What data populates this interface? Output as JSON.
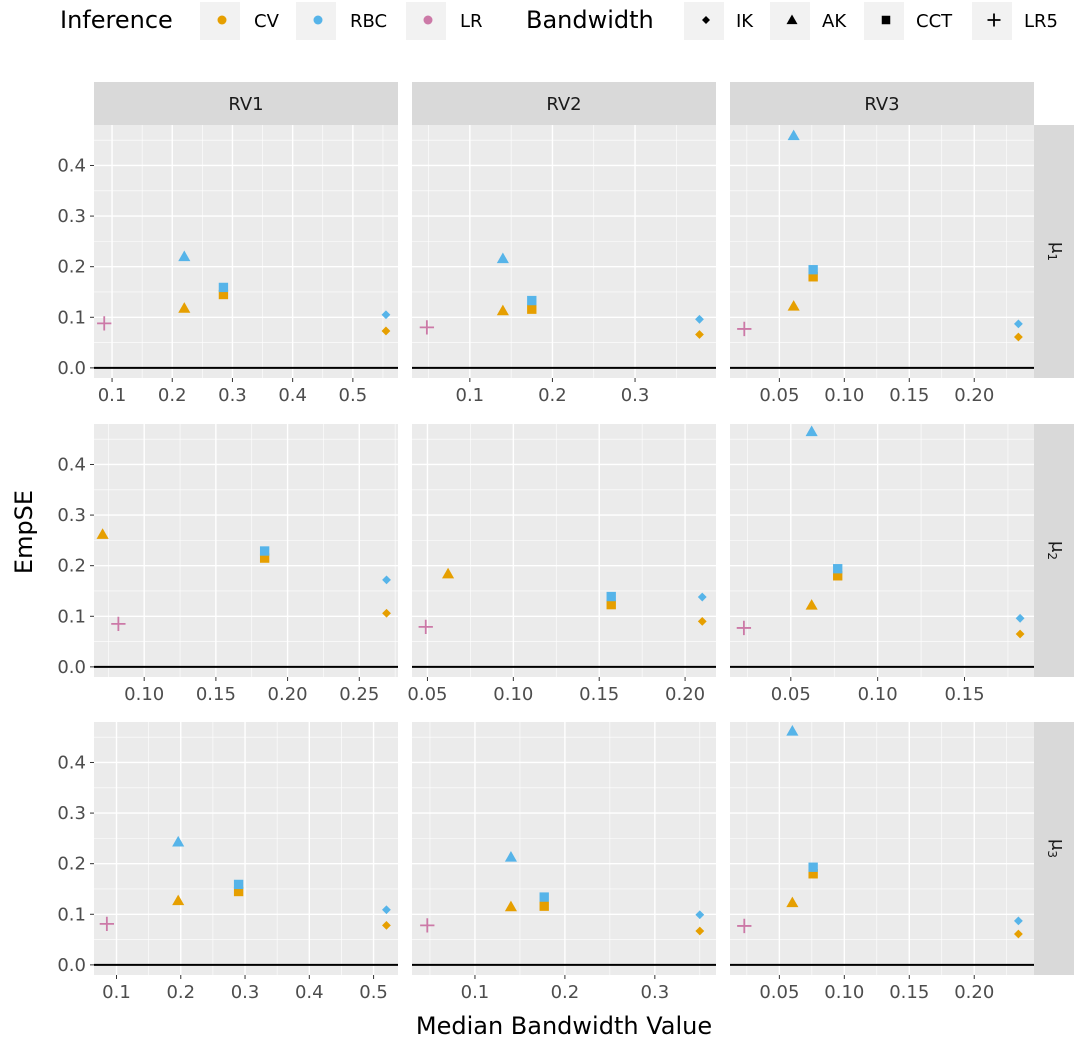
{
  "chart_data": {
    "type": "scatter",
    "xlabel": "Median Bandwidth Value",
    "ylabel": "EmpSE",
    "ylim": [
      -0.02,
      0.48
    ],
    "yticks": [
      0.0,
      0.1,
      0.2,
      0.3,
      0.4
    ],
    "yticklabels": [
      "0.0",
      "0.1",
      "0.2",
      "0.3",
      "0.4"
    ],
    "grid": true,
    "legend_position": "top",
    "legend": {
      "inference_title": "Inference",
      "inference": [
        {
          "key": "CV",
          "label": "CV",
          "color": "#E69F00"
        },
        {
          "key": "RBC",
          "label": "RBC",
          "color": "#56B4E9"
        },
        {
          "key": "LR",
          "label": "LR",
          "color": "#CC79A7"
        }
      ],
      "bandwidth_title": "Bandwidth",
      "bandwidth": [
        {
          "key": "IK",
          "label": "IK",
          "shape": "diamond"
        },
        {
          "key": "AK",
          "label": "AK",
          "shape": "triangle"
        },
        {
          "key": "CCT",
          "label": "CCT",
          "shape": "square"
        },
        {
          "key": "LR5",
          "label": "LR5",
          "shape": "plus"
        }
      ]
    },
    "columns": [
      "RV1",
      "RV2",
      "RV3"
    ],
    "rows": [
      {
        "label": "μ",
        "sub": "1"
      },
      {
        "label": "μ",
        "sub": "2"
      },
      {
        "label": "μ",
        "sub": "3"
      }
    ],
    "panels": [
      {
        "col": 0,
        "row": 0,
        "xlim": [
          0.07,
          0.575
        ],
        "xticks": [
          0.1,
          0.2,
          0.3,
          0.4,
          0.5
        ],
        "xticklabels": [
          "0.1",
          "0.2",
          "0.3",
          "0.4",
          "0.5"
        ],
        "points": [
          {
            "bw": "LR5",
            "inf": "LR",
            "x": 0.087,
            "y": 0.088
          },
          {
            "bw": "AK",
            "inf": "CV",
            "x": 0.22,
            "y": 0.118
          },
          {
            "bw": "AK",
            "inf": "RBC",
            "x": 0.22,
            "y": 0.22
          },
          {
            "bw": "CCT",
            "inf": "CV",
            "x": 0.285,
            "y": 0.145
          },
          {
            "bw": "CCT",
            "inf": "RBC",
            "x": 0.285,
            "y": 0.159
          },
          {
            "bw": "IK",
            "inf": "CV",
            "x": 0.555,
            "y": 0.073
          },
          {
            "bw": "IK",
            "inf": "RBC",
            "x": 0.555,
            "y": 0.105
          }
        ]
      },
      {
        "col": 1,
        "row": 0,
        "xlim": [
          0.03,
          0.398
        ],
        "xticks": [
          0.1,
          0.2,
          0.3
        ],
        "xticklabels": [
          "0.1",
          "0.2",
          "0.3"
        ],
        "points": [
          {
            "bw": "LR5",
            "inf": "LR",
            "x": 0.048,
            "y": 0.08
          },
          {
            "bw": "AK",
            "inf": "CV",
            "x": 0.14,
            "y": 0.113
          },
          {
            "bw": "AK",
            "inf": "RBC",
            "x": 0.14,
            "y": 0.216
          },
          {
            "bw": "CCT",
            "inf": "CV",
            "x": 0.175,
            "y": 0.116
          },
          {
            "bw": "CCT",
            "inf": "RBC",
            "x": 0.175,
            "y": 0.133
          },
          {
            "bw": "IK",
            "inf": "CV",
            "x": 0.378,
            "y": 0.066
          },
          {
            "bw": "IK",
            "inf": "RBC",
            "x": 0.378,
            "y": 0.096
          }
        ]
      },
      {
        "col": 2,
        "row": 0,
        "xlim": [
          0.012,
          0.246
        ],
        "xticks": [
          0.05,
          0.1,
          0.15,
          0.2
        ],
        "xticklabels": [
          "0.05",
          "0.10",
          "0.15",
          "0.20"
        ],
        "points": [
          {
            "bw": "LR5",
            "inf": "LR",
            "x": 0.023,
            "y": 0.077
          },
          {
            "bw": "AK",
            "inf": "CV",
            "x": 0.061,
            "y": 0.122
          },
          {
            "bw": "AK",
            "inf": "RBC",
            "x": 0.061,
            "y": 0.459
          },
          {
            "bw": "CCT",
            "inf": "CV",
            "x": 0.076,
            "y": 0.18
          },
          {
            "bw": "CCT",
            "inf": "RBC",
            "x": 0.076,
            "y": 0.194
          },
          {
            "bw": "IK",
            "inf": "CV",
            "x": 0.234,
            "y": 0.061
          },
          {
            "bw": "IK",
            "inf": "RBC",
            "x": 0.234,
            "y": 0.087
          }
        ]
      },
      {
        "col": 0,
        "row": 1,
        "xlim": [
          0.065,
          0.277
        ],
        "xticks": [
          0.1,
          0.15,
          0.2,
          0.25
        ],
        "xticklabels": [
          "0.10",
          "0.15",
          "0.20",
          "0.25"
        ],
        "points": [
          {
            "bw": "LR5",
            "inf": "LR",
            "x": 0.082,
            "y": 0.085
          },
          {
            "bw": "AK",
            "inf": "CV",
            "x": 0.071,
            "y": 0.262
          },
          {
            "bw": "CCT",
            "inf": "CV",
            "x": 0.184,
            "y": 0.215
          },
          {
            "bw": "CCT",
            "inf": "RBC",
            "x": 0.184,
            "y": 0.229
          },
          {
            "bw": "IK",
            "inf": "CV",
            "x": 0.269,
            "y": 0.106
          },
          {
            "bw": "IK",
            "inf": "RBC",
            "x": 0.269,
            "y": 0.172
          }
        ]
      },
      {
        "col": 1,
        "row": 1,
        "xlim": [
          0.041,
          0.218
        ],
        "xticks": [
          0.05,
          0.1,
          0.15,
          0.2
        ],
        "xticklabels": [
          "0.05",
          "0.10",
          "0.15",
          "0.20"
        ],
        "points": [
          {
            "bw": "LR5",
            "inf": "LR",
            "x": 0.049,
            "y": 0.079
          },
          {
            "bw": "AK",
            "inf": "CV",
            "x": 0.062,
            "y": 0.184
          },
          {
            "bw": "CCT",
            "inf": "CV",
            "x": 0.157,
            "y": 0.123
          },
          {
            "bw": "CCT",
            "inf": "RBC",
            "x": 0.157,
            "y": 0.139
          },
          {
            "bw": "IK",
            "inf": "CV",
            "x": 0.21,
            "y": 0.09
          },
          {
            "bw": "IK",
            "inf": "RBC",
            "x": 0.21,
            "y": 0.138
          }
        ]
      },
      {
        "col": 2,
        "row": 1,
        "xlim": [
          0.015,
          0.19
        ],
        "xticks": [
          0.05,
          0.1,
          0.15
        ],
        "xticklabels": [
          "0.05",
          "0.10",
          "0.15"
        ],
        "points": [
          {
            "bw": "LR5",
            "inf": "LR",
            "x": 0.023,
            "y": 0.077
          },
          {
            "bw": "AK",
            "inf": "CV",
            "x": 0.062,
            "y": 0.122
          },
          {
            "bw": "AK",
            "inf": "RBC",
            "x": 0.062,
            "y": 0.465
          },
          {
            "bw": "CCT",
            "inf": "CV",
            "x": 0.077,
            "y": 0.18
          },
          {
            "bw": "CCT",
            "inf": "RBC",
            "x": 0.077,
            "y": 0.194
          },
          {
            "bw": "IK",
            "inf": "CV",
            "x": 0.182,
            "y": 0.065
          },
          {
            "bw": "IK",
            "inf": "RBC",
            "x": 0.182,
            "y": 0.096
          }
        ]
      },
      {
        "col": 0,
        "row": 2,
        "xlim": [
          0.065,
          0.538
        ],
        "xticks": [
          0.1,
          0.2,
          0.3,
          0.4,
          0.5
        ],
        "xticklabels": [
          "0.1",
          "0.2",
          "0.3",
          "0.4",
          "0.5"
        ],
        "points": [
          {
            "bw": "LR5",
            "inf": "LR",
            "x": 0.085,
            "y": 0.081
          },
          {
            "bw": "AK",
            "inf": "CV",
            "x": 0.196,
            "y": 0.127
          },
          {
            "bw": "AK",
            "inf": "RBC",
            "x": 0.196,
            "y": 0.243
          },
          {
            "bw": "CCT",
            "inf": "CV",
            "x": 0.29,
            "y": 0.145
          },
          {
            "bw": "CCT",
            "inf": "RBC",
            "x": 0.29,
            "y": 0.159
          },
          {
            "bw": "IK",
            "inf": "CV",
            "x": 0.52,
            "y": 0.078
          },
          {
            "bw": "IK",
            "inf": "RBC",
            "x": 0.52,
            "y": 0.109
          }
        ]
      },
      {
        "col": 1,
        "row": 2,
        "xlim": [
          0.03,
          0.368
        ],
        "xticks": [
          0.1,
          0.2,
          0.3
        ],
        "xticklabels": [
          "0.1",
          "0.2",
          "0.3"
        ],
        "points": [
          {
            "bw": "LR5",
            "inf": "LR",
            "x": 0.047,
            "y": 0.078
          },
          {
            "bw": "AK",
            "inf": "CV",
            "x": 0.14,
            "y": 0.115
          },
          {
            "bw": "AK",
            "inf": "RBC",
            "x": 0.14,
            "y": 0.213
          },
          {
            "bw": "CCT",
            "inf": "CV",
            "x": 0.177,
            "y": 0.116
          },
          {
            "bw": "CCT",
            "inf": "RBC",
            "x": 0.177,
            "y": 0.134
          },
          {
            "bw": "IK",
            "inf": "CV",
            "x": 0.35,
            "y": 0.067
          },
          {
            "bw": "IK",
            "inf": "RBC",
            "x": 0.35,
            "y": 0.099
          }
        ]
      },
      {
        "col": 2,
        "row": 2,
        "xlim": [
          0.012,
          0.246
        ],
        "xticks": [
          0.05,
          0.1,
          0.15,
          0.2
        ],
        "xticklabels": [
          "0.05",
          "0.10",
          "0.15",
          "0.20"
        ],
        "points": [
          {
            "bw": "LR5",
            "inf": "LR",
            "x": 0.023,
            "y": 0.077
          },
          {
            "bw": "AK",
            "inf": "CV",
            "x": 0.06,
            "y": 0.123
          },
          {
            "bw": "AK",
            "inf": "RBC",
            "x": 0.06,
            "y": 0.462
          },
          {
            "bw": "CCT",
            "inf": "CV",
            "x": 0.076,
            "y": 0.18
          },
          {
            "bw": "CCT",
            "inf": "RBC",
            "x": 0.076,
            "y": 0.193
          },
          {
            "bw": "IK",
            "inf": "CV",
            "x": 0.234,
            "y": 0.061
          },
          {
            "bw": "IK",
            "inf": "RBC",
            "x": 0.234,
            "y": 0.087
          }
        ]
      }
    ]
  }
}
